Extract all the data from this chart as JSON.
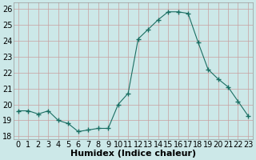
{
  "x": [
    0,
    1,
    2,
    3,
    4,
    5,
    6,
    7,
    8,
    9,
    10,
    11,
    12,
    13,
    14,
    15,
    16,
    17,
    18,
    19,
    20,
    21,
    22,
    23
  ],
  "y": [
    19.6,
    19.6,
    19.4,
    19.6,
    19.0,
    18.8,
    18.3,
    18.4,
    18.5,
    18.5,
    20.0,
    20.7,
    24.1,
    24.7,
    25.3,
    25.8,
    25.8,
    25.7,
    23.9,
    22.2,
    21.6,
    21.1,
    20.2,
    19.3
  ],
  "bg_color": "#cce8e8",
  "grid_color_major": "#c8a0a0",
  "grid_color_minor": "#c8c0b8",
  "line_color": "#1a6e62",
  "marker_color": "#1a6e62",
  "xlabel": "Humidex (Indice chaleur)",
  "ylim": [
    17.8,
    26.4
  ],
  "xlim": [
    -0.5,
    23.5
  ],
  "yticks": [
    18,
    19,
    20,
    21,
    22,
    23,
    24,
    25,
    26
  ],
  "xtick_labels": [
    "0",
    "1",
    "2",
    "3",
    "4",
    "5",
    "6",
    "7",
    "8",
    "9",
    "10",
    "11",
    "12",
    "13",
    "14",
    "15",
    "16",
    "17",
    "18",
    "19",
    "20",
    "21",
    "22",
    "23"
  ],
  "xlabel_fontsize": 8,
  "tick_fontsize": 7
}
